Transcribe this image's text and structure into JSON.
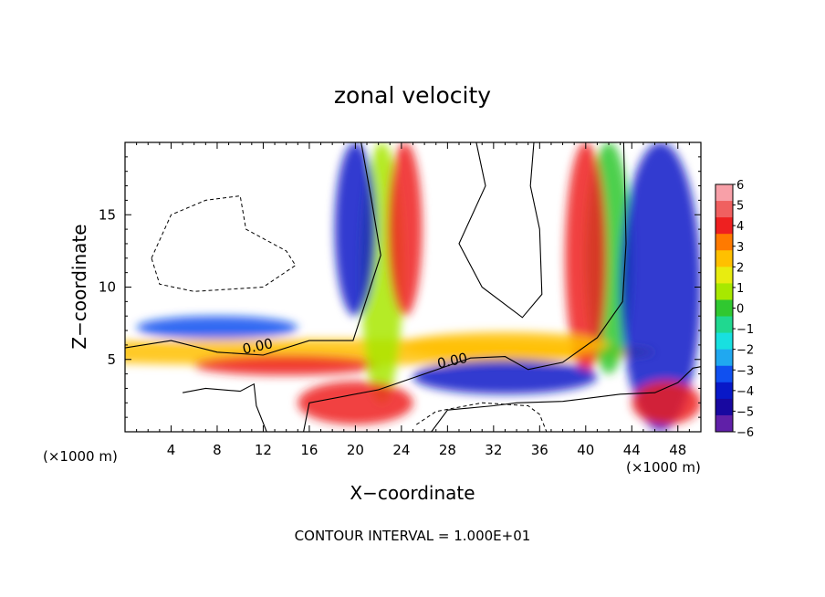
{
  "chart_data": {
    "type": "heatmap",
    "title": "zonal velocity",
    "xlabel": "X−coordinate",
    "ylabel": "Z−coordinate",
    "x_unit_left": "(×1000 m)",
    "x_unit_right": "(×1000 m)",
    "footer": "CONTOUR INTERVAL = 1.000E+01",
    "xlim": [
      0,
      50
    ],
    "ylim": [
      0,
      20
    ],
    "x_ticks": [
      4,
      8,
      12,
      16,
      20,
      24,
      28,
      32,
      36,
      40,
      44,
      48
    ],
    "y_ticks": [
      5,
      10,
      15
    ],
    "colorbar": {
      "levels": [
        6,
        5,
        4,
        3,
        2,
        1,
        0,
        -1,
        -2,
        -3,
        -4,
        -5,
        -6
      ],
      "labels": [
        "6",
        "5",
        "4",
        "3",
        "2",
        "1",
        "0",
        "−1",
        "−2",
        "−3",
        "−4",
        "−5",
        "−6"
      ],
      "colors": [
        "#f8a0a8",
        "#f06060",
        "#ee2020",
        "#ff7a00",
        "#ffc000",
        "#e8ec10",
        "#a8e800",
        "#30c830",
        "#20d890",
        "#18e0e0",
        "#20a8f0",
        "#1050f0",
        "#0818c8",
        "#1808a0",
        "#6020a8"
      ]
    },
    "contour_labels": [
      {
        "text": "0.00",
        "x": 11.6,
        "y": 5.6
      },
      {
        "text": "0.00",
        "x": 28.5,
        "y": 4.6
      }
    ],
    "zero_contours": [
      [
        [
          0,
          5.8
        ],
        [
          4,
          6.3
        ],
        [
          8,
          5.5
        ],
        [
          12,
          5.3
        ],
        [
          16,
          6.3
        ],
        [
          19.8,
          6.3
        ],
        [
          20.7,
          8.5
        ],
        [
          22.2,
          12.2
        ],
        [
          21.4,
          16
        ],
        [
          20.5,
          20
        ]
      ],
      [
        [
          15.5,
          0
        ],
        [
          16,
          2
        ],
        [
          22,
          2.9
        ],
        [
          26,
          4
        ],
        [
          30,
          5.1
        ],
        [
          33,
          5.2
        ],
        [
          35,
          4.3
        ],
        [
          38,
          4.8
        ],
        [
          41,
          6.5
        ],
        [
          43.2,
          9
        ],
        [
          43.5,
          13
        ],
        [
          43.3,
          20
        ]
      ],
      [
        [
          26.6,
          0
        ],
        [
          28,
          1.5
        ],
        [
          32,
          1.8
        ],
        [
          34,
          2
        ],
        [
          38,
          2.1
        ],
        [
          43,
          2.6
        ],
        [
          46,
          2.7
        ],
        [
          48,
          3.4
        ],
        [
          49.3,
          4.4
        ],
        [
          50,
          4.5
        ]
      ],
      [
        [
          30.5,
          20
        ],
        [
          31.3,
          17
        ],
        [
          29,
          13
        ],
        [
          31,
          10
        ],
        [
          34.5,
          7.9
        ],
        [
          36.2,
          9.5
        ],
        [
          36,
          14
        ],
        [
          35.2,
          17
        ],
        [
          35.5,
          20
        ]
      ],
      [
        [
          5,
          2.7
        ],
        [
          7,
          3
        ],
        [
          10,
          2.8
        ],
        [
          11.2,
          3.3
        ],
        [
          11.4,
          1.8
        ],
        [
          12.3,
          0
        ]
      ]
    ],
    "dashed_contours": [
      [
        [
          2.3,
          12
        ],
        [
          4,
          15
        ],
        [
          7,
          16
        ],
        [
          10,
          16.3
        ],
        [
          10.5,
          14
        ],
        [
          14,
          12.5
        ],
        [
          14.8,
          11.5
        ],
        [
          12,
          10
        ],
        [
          6,
          9.7
        ],
        [
          3,
          10.2
        ],
        [
          2.3,
          12
        ]
      ],
      [
        [
          25.3,
          0.5
        ],
        [
          27,
          1.4
        ],
        [
          31,
          2
        ],
        [
          35,
          1.8
        ],
        [
          36,
          1.2
        ],
        [
          36.6,
          0
        ]
      ]
    ],
    "field_blobs": [
      {
        "x": 16,
        "y": 5.5,
        "rx": 30,
        "ry": 0.9,
        "value": 3
      },
      {
        "x": 14,
        "y": 4.6,
        "rx": 8,
        "ry": 0.7,
        "value": 4
      },
      {
        "x": 8,
        "y": 7.2,
        "rx": 7,
        "ry": 0.8,
        "value": -3
      },
      {
        "x": 22.3,
        "y": 11,
        "rx": 1.8,
        "ry": 9,
        "value": 1
      },
      {
        "x": 20,
        "y": 14,
        "rx": 1.8,
        "ry": 6,
        "value": -4
      },
      {
        "x": 24.3,
        "y": 14,
        "rx": 1.5,
        "ry": 6,
        "value": 4
      },
      {
        "x": 42,
        "y": 12,
        "rx": 2,
        "ry": 8,
        "value": 0
      },
      {
        "x": 40,
        "y": 12,
        "rx": 1.8,
        "ry": 8,
        "value": 4
      },
      {
        "x": 46.5,
        "y": 10,
        "rx": 3.5,
        "ry": 10,
        "value": -4
      },
      {
        "x": 33,
        "y": 3.8,
        "rx": 8,
        "ry": 1.2,
        "value": -4
      },
      {
        "x": 33,
        "y": 6,
        "rx": 9,
        "ry": 0.9,
        "value": 3
      },
      {
        "x": 20,
        "y": 2,
        "rx": 5,
        "ry": 1.5,
        "value": 4
      },
      {
        "x": 47,
        "y": 2,
        "rx": 3,
        "ry": 1.5,
        "value": 4
      }
    ]
  }
}
